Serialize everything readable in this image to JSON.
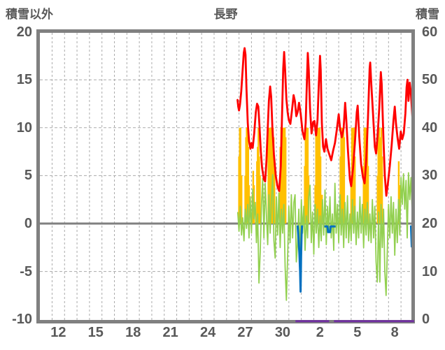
{
  "chart_data": {
    "type": "line",
    "title": "長野",
    "left_axis": {
      "label": "積雪以外",
      "range": [
        -10,
        20
      ],
      "ticks": [
        20,
        15,
        10,
        5,
        0,
        -5,
        -10
      ],
      "gridline_values": [
        15,
        10,
        5,
        -5
      ]
    },
    "right_axis": {
      "label": "積雪",
      "range": [
        0,
        60
      ],
      "ticks": [
        60,
        50,
        40,
        30,
        20,
        10,
        0
      ]
    },
    "x_axis": {
      "tick_labels": [
        "12",
        "15",
        "18",
        "21",
        "24",
        "27",
        "30",
        "2",
        "5",
        "8"
      ],
      "tick_days": [
        12,
        15,
        18,
        21,
        24,
        27,
        30,
        33,
        36,
        39
      ],
      "range_days": [
        10.52,
        40.55
      ],
      "gridlines_daily": true,
      "note_days_numbering": "27=Dec27, 33=Jan2"
    },
    "styles": {
      "background": "#FFFFFF",
      "grid_color": "#ABABAB",
      "axis_color": "#808080",
      "zero_line_color": "#808080",
      "text_color": "#595959",
      "red": "#FF0000",
      "yellow": "#FFC000",
      "green": "#92D050",
      "blue": "#0070C0",
      "purple": "#7030A0"
    },
    "series": [
      {
        "name": "red_series",
        "color": "#FF0000",
        "axis": "left",
        "type": "line",
        "points": [
          [
            26.38,
            12.9
          ],
          [
            26.44,
            12.2
          ],
          [
            26.5,
            11.8
          ],
          [
            26.58,
            12.4
          ],
          [
            26.68,
            13.8
          ],
          [
            26.78,
            15.8
          ],
          [
            26.88,
            17.8
          ],
          [
            26.95,
            18.3
          ],
          [
            27.02,
            17.6
          ],
          [
            27.1,
            14.0
          ],
          [
            27.2,
            10.5
          ],
          [
            27.3,
            8.6
          ],
          [
            27.42,
            7.8
          ],
          [
            27.5,
            8.4
          ],
          [
            27.6,
            7.9
          ],
          [
            27.72,
            9.4
          ],
          [
            27.85,
            11.6
          ],
          [
            27.95,
            12.5
          ],
          [
            28.05,
            12.2
          ],
          [
            28.15,
            10.0
          ],
          [
            28.25,
            7.5
          ],
          [
            28.35,
            5.8
          ],
          [
            28.5,
            4.6
          ],
          [
            28.6,
            4.4
          ],
          [
            28.7,
            6.5
          ],
          [
            28.8,
            9.8
          ],
          [
            28.9,
            12.8
          ],
          [
            29.0,
            14.3
          ],
          [
            29.08,
            13.2
          ],
          [
            29.18,
            10.0
          ],
          [
            29.3,
            7.2
          ],
          [
            29.45,
            5.0
          ],
          [
            29.6,
            3.8
          ],
          [
            29.72,
            3.4
          ],
          [
            29.85,
            6.0
          ],
          [
            29.95,
            11.0
          ],
          [
            30.05,
            16.2
          ],
          [
            30.12,
            17.9
          ],
          [
            30.2,
            16.0
          ],
          [
            30.3,
            13.0
          ],
          [
            30.4,
            11.6
          ],
          [
            30.5,
            10.8
          ],
          [
            30.62,
            10.4
          ],
          [
            30.75,
            11.8
          ],
          [
            30.88,
            13.4
          ],
          [
            30.98,
            12.8
          ],
          [
            31.1,
            11.2
          ],
          [
            31.2,
            11.6
          ],
          [
            31.32,
            12.6
          ],
          [
            31.45,
            11.4
          ],
          [
            31.6,
            9.6
          ],
          [
            31.75,
            8.8
          ],
          [
            31.85,
            10.5
          ],
          [
            31.95,
            15.0
          ],
          [
            32.02,
            17.8
          ],
          [
            32.1,
            16.0
          ],
          [
            32.2,
            12.0
          ],
          [
            32.32,
            9.4
          ],
          [
            32.45,
            10.6
          ],
          [
            32.55,
            10.7
          ],
          [
            32.68,
            9.2
          ],
          [
            32.8,
            10.8
          ],
          [
            32.9,
            14.5
          ],
          [
            33.0,
            17.5
          ],
          [
            33.06,
            16.0
          ],
          [
            33.15,
            10.5
          ],
          [
            33.25,
            8.0
          ],
          [
            33.35,
            7.5
          ],
          [
            33.48,
            8.8
          ],
          [
            33.6,
            7.8
          ],
          [
            33.75,
            7.2
          ],
          [
            33.9,
            6.6
          ],
          [
            34.05,
            7.6
          ],
          [
            34.2,
            8.4
          ],
          [
            34.35,
            9.8
          ],
          [
            34.5,
            11.4
          ],
          [
            34.62,
            9.8
          ],
          [
            34.75,
            9.0
          ],
          [
            34.9,
            10.0
          ],
          [
            35.02,
            12.6
          ],
          [
            35.1,
            11.0
          ],
          [
            35.25,
            7.5
          ],
          [
            35.4,
            4.6
          ],
          [
            35.5,
            3.9
          ],
          [
            35.65,
            5.8
          ],
          [
            35.8,
            8.4
          ],
          [
            35.95,
            11.6
          ],
          [
            36.02,
            12.3
          ],
          [
            36.15,
            9.0
          ],
          [
            36.3,
            6.2
          ],
          [
            36.45,
            4.8
          ],
          [
            36.58,
            4.2
          ],
          [
            36.7,
            6.5
          ],
          [
            36.85,
            11.0
          ],
          [
            36.98,
            16.2
          ],
          [
            37.03,
            16.8
          ],
          [
            37.12,
            14.5
          ],
          [
            37.25,
            11.5
          ],
          [
            37.4,
            8.0
          ],
          [
            37.5,
            7.3
          ],
          [
            37.62,
            9.2
          ],
          [
            37.75,
            12.0
          ],
          [
            37.88,
            15.8
          ],
          [
            37.95,
            14.6
          ],
          [
            38.1,
            8.5
          ],
          [
            38.2,
            5.0
          ],
          [
            38.32,
            2.9
          ],
          [
            38.45,
            4.2
          ],
          [
            38.6,
            6.0
          ],
          [
            38.75,
            8.2
          ],
          [
            38.9,
            10.8
          ],
          [
            39.0,
            12.2
          ],
          [
            39.1,
            10.4
          ],
          [
            39.22,
            9.0
          ],
          [
            39.35,
            7.8
          ],
          [
            39.48,
            9.6
          ],
          [
            39.6,
            8.8
          ],
          [
            39.72,
            9.4
          ],
          [
            39.85,
            11.5
          ],
          [
            39.95,
            14.2
          ],
          [
            40.02,
            15.0
          ],
          [
            40.1,
            12.8
          ],
          [
            40.2,
            14.7
          ],
          [
            40.3,
            13.5
          ],
          [
            40.42,
            11.0
          ],
          [
            40.5,
            10.0
          ]
        ]
      },
      {
        "name": "yellow_bars",
        "color": "#FFC000",
        "axis": "left",
        "type": "bar",
        "points": [
          [
            26.5,
            7
          ],
          [
            26.56,
            10
          ],
          [
            26.62,
            10
          ],
          [
            26.7,
            5
          ],
          [
            27.0,
            5
          ],
          [
            27.06,
            9
          ],
          [
            27.12,
            10
          ],
          [
            27.18,
            10
          ],
          [
            27.24,
            8
          ],
          [
            27.3,
            4
          ],
          [
            27.58,
            3
          ],
          [
            27.64,
            5.5
          ],
          [
            27.7,
            4
          ],
          [
            27.94,
            6.5
          ],
          [
            28.0,
            8
          ],
          [
            28.06,
            10
          ],
          [
            28.12,
            7
          ],
          [
            28.18,
            5
          ],
          [
            28.86,
            9
          ],
          [
            28.92,
            10
          ],
          [
            28.98,
            10
          ],
          [
            29.04,
            10
          ],
          [
            29.1,
            10
          ],
          [
            29.16,
            10
          ],
          [
            29.22,
            10
          ],
          [
            29.28,
            9
          ],
          [
            29.34,
            6
          ],
          [
            29.82,
            8
          ],
          [
            29.88,
            10
          ],
          [
            29.94,
            10
          ],
          [
            30.0,
            10
          ],
          [
            30.06,
            10
          ],
          [
            30.12,
            10
          ],
          [
            30.18,
            10
          ],
          [
            30.24,
            9
          ],
          [
            31.78,
            6
          ],
          [
            31.84,
            10
          ],
          [
            31.9,
            9
          ],
          [
            31.96,
            10
          ],
          [
            32.02,
            10
          ],
          [
            32.08,
            5
          ],
          [
            32.62,
            4
          ],
          [
            32.68,
            10
          ],
          [
            32.74,
            9.5
          ],
          [
            32.8,
            10
          ],
          [
            32.92,
            10
          ],
          [
            32.98,
            10
          ],
          [
            33.04,
            7
          ],
          [
            33.16,
            3
          ],
          [
            34.64,
            7
          ],
          [
            34.7,
            10
          ],
          [
            34.76,
            10
          ],
          [
            34.82,
            8
          ],
          [
            34.88,
            10
          ],
          [
            34.94,
            9
          ],
          [
            35.5,
            5
          ],
          [
            35.56,
            10
          ],
          [
            35.62,
            10
          ],
          [
            35.68,
            9
          ],
          [
            35.74,
            10
          ],
          [
            35.8,
            7
          ],
          [
            36.5,
            6
          ],
          [
            36.56,
            10
          ],
          [
            36.62,
            10
          ],
          [
            36.68,
            10
          ],
          [
            36.74,
            9
          ],
          [
            36.8,
            10
          ],
          [
            36.86,
            6
          ],
          [
            37.62,
            5
          ],
          [
            37.68,
            10
          ],
          [
            37.74,
            10
          ],
          [
            37.8,
            6
          ],
          [
            37.86,
            9
          ],
          [
            37.92,
            10
          ],
          [
            37.98,
            7
          ],
          [
            38.5,
            1.5
          ],
          [
            39.32,
            6.5
          ],
          [
            39.38,
            4
          ]
        ]
      },
      {
        "name": "green_series",
        "color": "#92D050",
        "axis": "left",
        "type": "line",
        "start_day": 26.4,
        "step": 0.1,
        "values": [
          1.2,
          -0.8,
          1.8,
          -1.2,
          0.6,
          -1.8,
          1.5,
          -0.5,
          2.0,
          -1.5,
          2.8,
          -1.0,
          3.6,
          0.5,
          2.2,
          -2.0,
          1.0,
          -6.2,
          -3.0,
          2.0,
          4.7,
          -1.5,
          4.2,
          1.0,
          -2.2,
          3.0,
          -1.0,
          2.5,
          5.1,
          -1.8,
          -3.6,
          2.8,
          -1.2,
          3.2,
          -2.5,
          1.5,
          -1.0,
          2.0,
          -4.5,
          -8.0,
          -3.5,
          1.8,
          -2.0,
          3.0,
          -1.5,
          2.2,
          3.0,
          -4.0,
          -2.0,
          1.5,
          -3.5,
          2.5,
          -1.0,
          1.8,
          -2.8,
          0.8,
          -1.5,
          2.8,
          4.0,
          -2.0,
          1.2,
          -3.2,
          2.0,
          -1.0,
          1.5,
          -2.5,
          0.8,
          -1.8,
          2.5,
          -1.2,
          3.5,
          -2.2,
          1.8,
          -0.8,
          2.8,
          -1.5,
          1.0,
          -2.8,
          4.2,
          -1.0,
          2.0,
          -2.0,
          3.0,
          -1.2,
          1.5,
          -2.5,
          2.2,
          -1.5,
          2.9,
          -2.0,
          1.0,
          -1.8,
          2.5,
          -1.0,
          1.8,
          -2.2,
          1.2,
          -1.5,
          2.8,
          -1.0,
          2.0,
          -2.5,
          1.5,
          -1.2,
          2.2,
          -1.8,
          1.0,
          -2.0,
          2.5,
          -1.5,
          1.8,
          -4.0,
          -6.1,
          1.2,
          -6.1,
          2.0,
          -2.5,
          1.5,
          -5.0,
          -7.5,
          -3.0,
          2.0,
          -1.5,
          2.8,
          -1.0,
          2.2,
          -3.3,
          1.5,
          -2.0,
          2.5,
          -1.2,
          4.8,
          2.0,
          5.2,
          1.5,
          4.5,
          -1.5,
          5.3,
          2.5,
          4.8,
          1.0
        ]
      },
      {
        "name": "blue_series",
        "color": "#0070C0",
        "axis": "left",
        "type": "line",
        "segments": [
          [
            [
              31.2,
              -0.2
            ],
            [
              31.28,
              -1.6
            ],
            [
              31.34,
              -3.0
            ],
            [
              31.4,
              -5.0
            ],
            [
              31.44,
              -7.1
            ],
            [
              31.48,
              -3.5
            ],
            [
              31.52,
              -1.2
            ],
            [
              31.56,
              -0.2
            ]
          ],
          [
            [
              33.35,
              -0.3
            ],
            [
              33.6,
              -0.3
            ],
            [
              33.65,
              -0.9
            ],
            [
              33.8,
              -0.9
            ],
            [
              33.85,
              -0.3
            ],
            [
              34.25,
              -0.3
            ]
          ],
          [
            [
              40.3,
              -0.2
            ],
            [
              40.36,
              -2.4
            ],
            [
              40.44,
              -2.4
            ]
          ]
        ]
      },
      {
        "name": "purple_series",
        "color": "#7030A0",
        "axis": "right",
        "type": "line",
        "segments": [
          [
            [
              31.03,
              0
            ],
            [
              33.73,
              0
            ]
          ],
          [
            [
              34.12,
              0
            ],
            [
              40.55,
              0
            ]
          ]
        ]
      }
    ]
  }
}
